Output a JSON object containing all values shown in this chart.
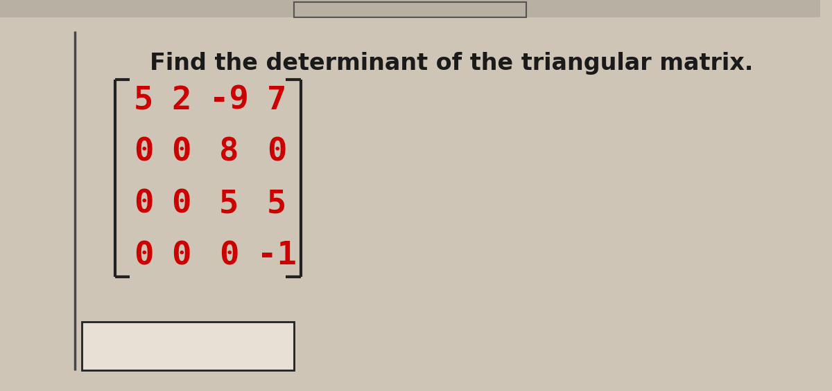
{
  "title": "Find the determinant of the triangular matrix.",
  "title_fontsize": 24,
  "title_color": "#1a1a1a",
  "matrix": [
    [
      "5",
      "2",
      "-9",
      "7"
    ],
    [
      "0",
      "0",
      "8",
      "0"
    ],
    [
      "0",
      "0",
      "5",
      "5"
    ],
    [
      "0",
      "0",
      "0",
      "-1"
    ]
  ],
  "matrix_color": "#cc0000",
  "matrix_fontsize": 34,
  "background_color_top": "#c8bfb0",
  "background_color_main": "#cec5b6",
  "left_bar_color": "#444455",
  "answer_box_color": "#e8e0d4",
  "answer_box_edge": "#222222",
  "bracket_color": "#222222"
}
